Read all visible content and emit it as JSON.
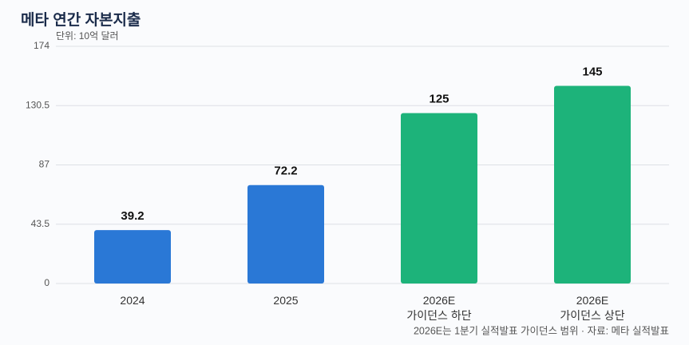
{
  "chart_data": {
    "type": "bar",
    "title": "메타 연간 자본지출",
    "subtitle": "단위: 10억 달러",
    "footnote": "2026E는 1분기 실적발표 가이던스 범위 · 자료: 메타 실적발표",
    "categories": [
      "2024",
      "2025",
      "2026E\n가이던스 하단",
      "2026E\n가이던스 상단"
    ],
    "values": [
      39.2,
      72.2,
      125,
      145
    ],
    "colors": [
      "#2a78d6",
      "#2a78d6",
      "#1db37a",
      "#1db37a"
    ],
    "ylim": [
      0,
      174
    ],
    "yticks": [
      0,
      43.5,
      87,
      130.5,
      174
    ],
    "grid": true
  }
}
